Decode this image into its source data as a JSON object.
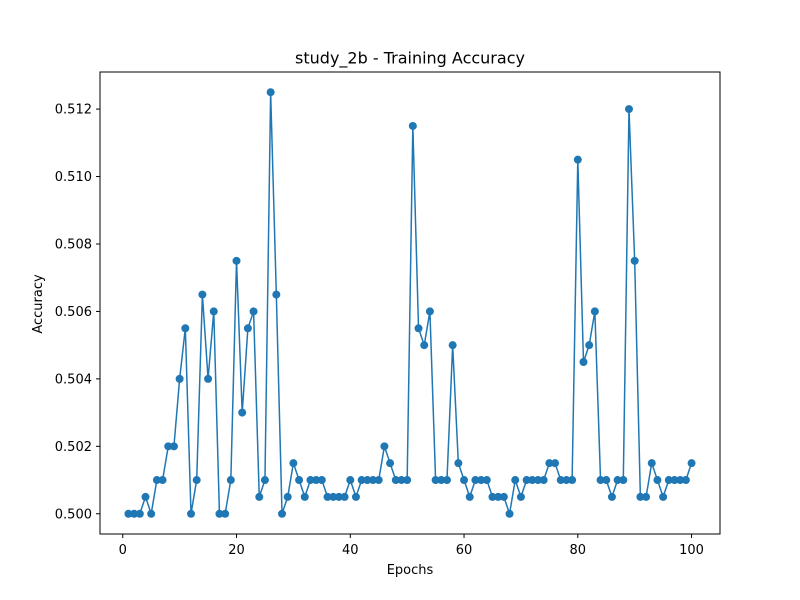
{
  "chart_data": {
    "type": "line",
    "title": "study_2b - Training Accuracy",
    "xlabel": "Epochs",
    "ylabel": "Accuracy",
    "xlim": [
      -4,
      105
    ],
    "ylim": [
      0.4994,
      0.5131
    ],
    "xticks": [
      0,
      20,
      40,
      60,
      80,
      100
    ],
    "yticks": [
      0.5,
      0.502,
      0.504,
      0.506,
      0.508,
      0.51,
      0.512
    ],
    "grid": false,
    "legend": "none",
    "color": "#1f77b4",
    "series": [
      {
        "x": [
          1,
          2,
          3,
          4,
          5,
          6,
          7,
          8,
          9,
          10,
          11,
          12,
          13,
          14,
          15,
          16,
          17,
          18,
          19,
          20,
          21,
          22,
          23,
          24,
          25,
          26,
          27,
          28,
          29,
          30,
          31,
          32,
          33,
          34,
          35,
          36,
          37,
          38,
          39,
          40,
          41,
          42,
          43,
          44,
          45,
          46,
          47,
          48,
          49,
          50,
          51,
          52,
          53,
          54,
          55,
          56,
          57,
          58,
          59,
          60,
          61,
          62,
          63,
          64,
          65,
          66,
          67,
          68,
          69,
          70,
          71,
          72,
          73,
          74,
          75,
          76,
          77,
          78,
          79,
          80,
          81,
          82,
          83,
          84,
          85,
          86,
          87,
          88,
          89,
          90,
          91,
          92,
          93,
          94,
          95,
          96,
          97,
          98,
          99,
          100
        ],
        "values": [
          0.5,
          0.5,
          0.5,
          0.5005,
          0.5,
          0.501,
          0.501,
          0.502,
          0.502,
          0.504,
          0.5055,
          0.5,
          0.501,
          0.5065,
          0.504,
          0.506,
          0.5,
          0.5,
          0.501,
          0.5075,
          0.503,
          0.5055,
          0.506,
          0.5005,
          0.501,
          0.5125,
          0.5065,
          0.5,
          0.5005,
          0.5015,
          0.501,
          0.5005,
          0.501,
          0.501,
          0.501,
          0.5005,
          0.5005,
          0.5005,
          0.5005,
          0.501,
          0.5005,
          0.501,
          0.501,
          0.501,
          0.501,
          0.502,
          0.5015,
          0.501,
          0.501,
          0.501,
          0.5115,
          0.5055,
          0.505,
          0.506,
          0.501,
          0.501,
          0.501,
          0.505,
          0.5015,
          0.501,
          0.5005,
          0.501,
          0.501,
          0.501,
          0.5005,
          0.5005,
          0.5005,
          0.5,
          0.501,
          0.5005,
          0.501,
          0.501,
          0.501,
          0.501,
          0.5015,
          0.5015,
          0.501,
          0.501,
          0.501,
          0.5105,
          0.5045,
          0.505,
          0.506,
          0.501,
          0.501,
          0.5005,
          0.501,
          0.501,
          0.512,
          0.5075,
          0.5005,
          0.5005,
          0.5015,
          0.501,
          0.5005,
          0.501,
          0.501,
          0.501,
          0.501,
          0.5015
        ]
      }
    ]
  }
}
